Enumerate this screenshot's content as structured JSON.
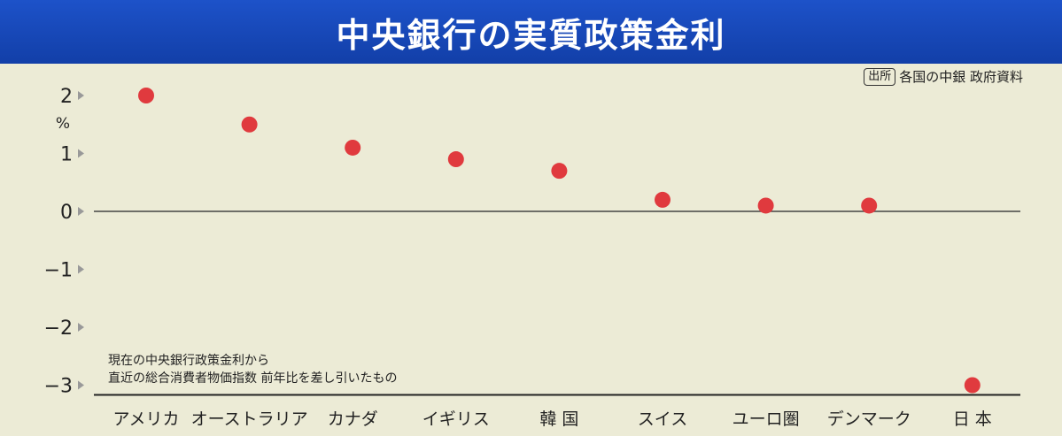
{
  "header": {
    "title": "中央銀行の実質政策金利"
  },
  "source": {
    "label": "出所",
    "text": "各国の中銀 政府資料"
  },
  "note": {
    "line1": "現在の中央銀行政策金利から",
    "line2": "直近の総合消費者物価指数 前年比を差し引いたもの"
  },
  "chart_data": {
    "type": "scatter",
    "title": "中央銀行の実質政策金利",
    "yunit": "%",
    "ylim": [
      -3,
      2
    ],
    "yticks": [
      "2",
      "1",
      "0",
      "−1",
      "−2",
      "−3"
    ],
    "categories": [
      "アメリカ",
      "オーストラリア",
      "カナダ",
      "イギリス",
      "韓 国",
      "スイス",
      "ユーロ圏",
      "デンマーク",
      "日 本"
    ],
    "values": [
      2.0,
      1.5,
      1.1,
      0.9,
      0.7,
      0.2,
      0.1,
      0.1,
      -3.0
    ],
    "marker_color": "#e03a3e",
    "grid": false
  }
}
